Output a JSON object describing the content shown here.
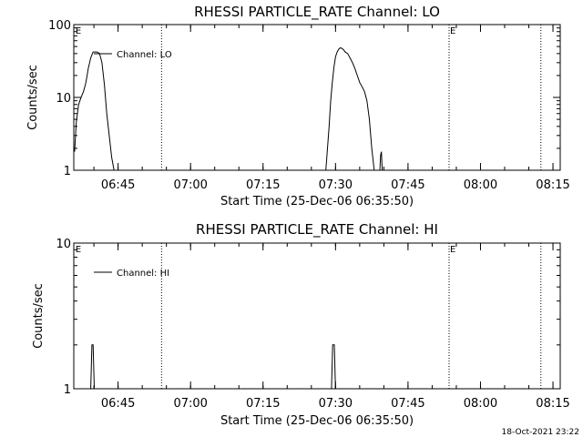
{
  "page": {
    "timestamp": "18-Oct-2021 23:22"
  },
  "chart_data": [
    {
      "type": "line",
      "title": "RHESSI PARTICLE_RATE Channel: LO",
      "xlabel": "Start Time (25-Dec-06 06:35:50)",
      "ylabel": "Counts/sec",
      "yscale": "log",
      "ylim": [
        1,
        100
      ],
      "xlim": [
        "06:35:50",
        "08:16:30"
      ],
      "y_tick_labels": [
        "1",
        "10",
        "100"
      ],
      "x_tick_labels": [
        "06:45",
        "07:00",
        "07:15",
        "07:30",
        "07:45",
        "08:00",
        "08:15"
      ],
      "event_marker_label": "E",
      "dotted_lines_x": [
        "06:54:00",
        "07:53:30",
        "08:12:30"
      ],
      "event_markers_x": [
        "06:36:00",
        "07:53:30"
      ],
      "legend": [
        "Channel: LO"
      ],
      "series": [
        {
          "name": "Channel: LO",
          "segments": [
            {
              "x": [
                "06:36:00",
                "06:36:20",
                "06:36:50",
                "06:37:20",
                "06:37:50",
                "06:38:20",
                "06:38:50",
                "06:39:20",
                "06:39:50",
                "06:40:10",
                "06:40:40",
                "06:41:10",
                "06:41:40",
                "06:42:10",
                "06:42:40",
                "06:43:10",
                "06:43:40",
                "06:44:10"
              ],
              "y": [
                1.8,
                4.5,
                8,
                10,
                12,
                16,
                25,
                35,
                42,
                42,
                42,
                40,
                30,
                15,
                6,
                3,
                1.5,
                1
              ]
            },
            {
              "x": [
                "07:28:00",
                "07:28:20",
                "07:28:40",
                "07:29:00",
                "07:29:20",
                "07:29:40",
                "07:30:00",
                "07:30:20",
                "07:30:40",
                "07:31:00",
                "07:31:20",
                "07:31:40",
                "07:32:00",
                "07:32:30",
                "07:33:00",
                "07:33:30",
                "07:34:00",
                "07:34:30",
                "07:35:00",
                "07:35:30",
                "07:36:00",
                "07:36:30",
                "07:37:00",
                "07:37:30",
                "07:38:00"
              ],
              "y": [
                1,
                2,
                4,
                9,
                16,
                26,
                36,
                42,
                46,
                48,
                47,
                45,
                42,
                40,
                35,
                30,
                25,
                20,
                16,
                14,
                12,
                9,
                5,
                2,
                1
              ]
            },
            {
              "x": [
                "07:39:10",
                "07:39:20",
                "07:39:30",
                "07:39:40"
              ],
              "y": [
                1,
                1.6,
                1.8,
                1
              ]
            }
          ]
        }
      ]
    },
    {
      "type": "line",
      "title": "RHESSI PARTICLE_RATE Channel: HI",
      "xlabel": "Start Time (25-Dec-06 06:35:50)",
      "ylabel": "Counts/sec",
      "yscale": "log",
      "ylim": [
        1,
        10
      ],
      "xlim": [
        "06:35:50",
        "08:16:30"
      ],
      "y_tick_labels": [
        "1",
        "10"
      ],
      "x_tick_labels": [
        "06:45",
        "07:00",
        "07:15",
        "07:30",
        "07:45",
        "08:00",
        "08:15"
      ],
      "event_marker_label": "E",
      "dotted_lines_x": [
        "06:54:00",
        "07:53:30",
        "08:12:30"
      ],
      "event_markers_x": [
        "06:36:00",
        "07:53:30"
      ],
      "legend": [
        "Channel: HI"
      ],
      "series": [
        {
          "name": "Channel: HI",
          "segments": [
            {
              "x": [
                "06:39:20",
                "06:39:35",
                "06:39:50",
                "06:40:05"
              ],
              "y": [
                1,
                2,
                2,
                1
              ]
            },
            {
              "x": [
                "07:29:10",
                "07:29:25",
                "07:29:45",
                "07:30:00"
              ],
              "y": [
                1,
                2,
                2,
                1
              ]
            }
          ]
        }
      ]
    }
  ]
}
